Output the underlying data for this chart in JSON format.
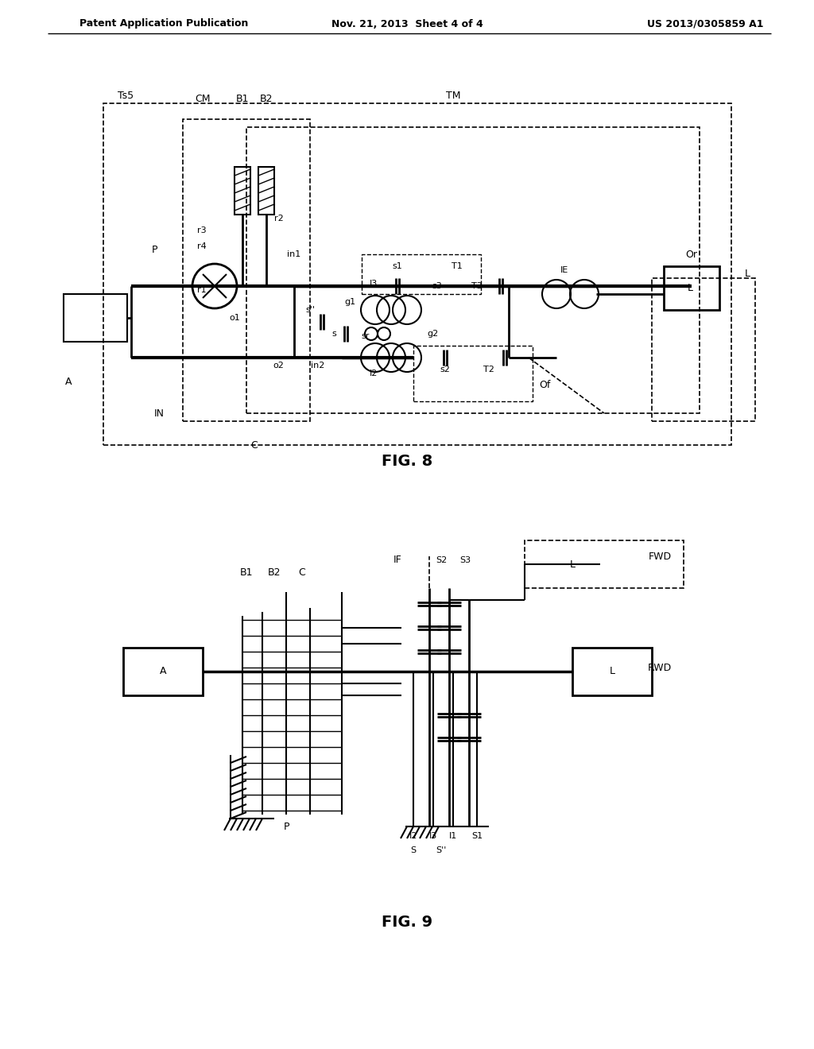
{
  "bg_color": "#ffffff",
  "header_left": "Patent Application Publication",
  "header_mid": "Nov. 21, 2013  Sheet 4 of 4",
  "header_right": "US 2013/0305859 A1",
  "fig8_title": "FIG. 8",
  "fig9_title": "FIG. 9",
  "line_color": "#000000",
  "dash_color": "#000000"
}
